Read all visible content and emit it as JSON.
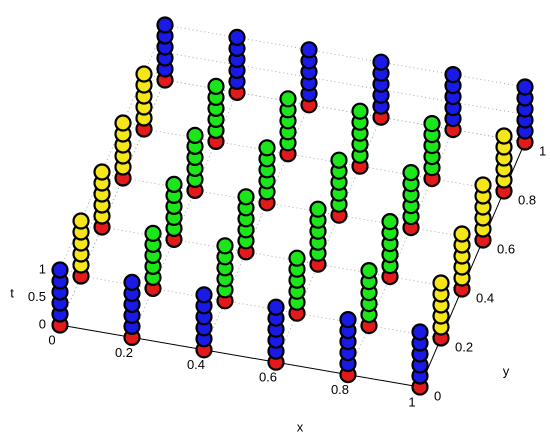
{
  "chart_data": {
    "type": "scatter3d",
    "x_label": "x",
    "y_label": "y",
    "z_label": "t",
    "xlim": [
      0,
      1
    ],
    "ylim": [
      0,
      1
    ],
    "zlim": [
      0,
      1
    ],
    "xticks": [
      0,
      0.2,
      0.4,
      0.6,
      0.8,
      1
    ],
    "yticks": [
      0,
      0.2,
      0.4,
      0.6,
      0.8,
      1
    ],
    "zticks": [
      0,
      0.5,
      1
    ],
    "grid": true,
    "series": [
      {
        "color": "#e41a1a",
        "x": [
          0,
          0.2,
          0.4,
          0.6,
          0.8,
          1,
          0,
          0.2,
          0.4,
          0.6,
          0.8,
          1,
          0,
          0.2,
          0.4,
          0.6,
          0.8,
          1,
          0,
          0.2,
          0.4,
          0.6,
          0.8,
          1,
          0,
          0.2,
          0.4,
          0.6,
          0.8,
          1,
          0,
          0.2,
          0.4,
          0.6,
          0.8,
          1
        ],
        "y": [
          0,
          0,
          0,
          0,
          0,
          0,
          0.2,
          0.2,
          0.2,
          0.2,
          0.2,
          0.2,
          0.4,
          0.4,
          0.4,
          0.4,
          0.4,
          0.4,
          0.6,
          0.6,
          0.6,
          0.6,
          0.6,
          0.6,
          0.8,
          0.8,
          0.8,
          0.8,
          0.8,
          0.8,
          1,
          1,
          1,
          1,
          1,
          1
        ],
        "z": [
          0,
          0,
          0,
          0,
          0,
          0,
          0,
          0,
          0,
          0,
          0,
          0,
          0,
          0,
          0,
          0,
          0,
          0,
          0,
          0,
          0,
          0,
          0,
          0,
          0,
          0,
          0,
          0,
          0,
          0,
          0,
          0,
          0,
          0,
          0,
          0
        ]
      },
      {
        "color": "#1a1ae6",
        "x": [
          0,
          0,
          0,
          0,
          0,
          0.2,
          0.2,
          0.2,
          0.2,
          0.2,
          0.4,
          0.4,
          0.4,
          0.4,
          0.4,
          0.6,
          0.6,
          0.6,
          0.6,
          0.6,
          0.8,
          0.8,
          0.8,
          0.8,
          0.8,
          1,
          1,
          1,
          1,
          1,
          0,
          0,
          0,
          0,
          0,
          0.2,
          0.2,
          0.2,
          0.2,
          0.2,
          0.4,
          0.4,
          0.4,
          0.4,
          0.4,
          0.6,
          0.6,
          0.6,
          0.6,
          0.6,
          0.8,
          0.8,
          0.8,
          0.8,
          0.8,
          1,
          1,
          1,
          1,
          1
        ],
        "y": [
          0,
          0,
          0,
          0,
          0,
          0,
          0,
          0,
          0,
          0,
          0,
          0,
          0,
          0,
          0,
          0,
          0,
          0,
          0,
          0,
          0,
          0,
          0,
          0,
          0,
          0,
          0,
          0,
          0,
          0,
          1,
          1,
          1,
          1,
          1,
          1,
          1,
          1,
          1,
          1,
          1,
          1,
          1,
          1,
          1,
          1,
          1,
          1,
          1,
          1,
          1,
          1,
          1,
          1,
          1,
          1,
          1,
          1,
          1,
          1
        ],
        "z": [
          0.2,
          0.4,
          0.6,
          0.8,
          1,
          0.2,
          0.4,
          0.6,
          0.8,
          1,
          0.2,
          0.4,
          0.6,
          0.8,
          1,
          0.2,
          0.4,
          0.6,
          0.8,
          1,
          0.2,
          0.4,
          0.6,
          0.8,
          1,
          0.2,
          0.4,
          0.6,
          0.8,
          1,
          0.2,
          0.4,
          0.6,
          0.8,
          1,
          0.2,
          0.4,
          0.6,
          0.8,
          1,
          0.2,
          0.4,
          0.6,
          0.8,
          1,
          0.2,
          0.4,
          0.6,
          0.8,
          1,
          0.2,
          0.4,
          0.6,
          0.8,
          1,
          0.2,
          0.4,
          0.6,
          0.8,
          1
        ]
      },
      {
        "color": "#f5e61a",
        "x": [
          0,
          0,
          0,
          0,
          0,
          0,
          0,
          0,
          0,
          0,
          0,
          0,
          0,
          0,
          0,
          0,
          0,
          0,
          0,
          0,
          1,
          1,
          1,
          1,
          1,
          1,
          1,
          1,
          1,
          1,
          1,
          1,
          1,
          1,
          1,
          1,
          1,
          1,
          1,
          1
        ],
        "y": [
          0.2,
          0.2,
          0.2,
          0.2,
          0.2,
          0.4,
          0.4,
          0.4,
          0.4,
          0.4,
          0.6,
          0.6,
          0.6,
          0.6,
          0.6,
          0.8,
          0.8,
          0.8,
          0.8,
          0.8,
          0.2,
          0.2,
          0.2,
          0.2,
          0.2,
          0.4,
          0.4,
          0.4,
          0.4,
          0.4,
          0.6,
          0.6,
          0.6,
          0.6,
          0.6,
          0.8,
          0.8,
          0.8,
          0.8,
          0.8
        ],
        "z": [
          0.2,
          0.4,
          0.6,
          0.8,
          1,
          0.2,
          0.4,
          0.6,
          0.8,
          1,
          0.2,
          0.4,
          0.6,
          0.8,
          1,
          0.2,
          0.4,
          0.6,
          0.8,
          1,
          0.2,
          0.4,
          0.6,
          0.8,
          1,
          0.2,
          0.4,
          0.6,
          0.8,
          1,
          0.2,
          0.4,
          0.6,
          0.8,
          1,
          0.2,
          0.4,
          0.6,
          0.8,
          1
        ]
      },
      {
        "color": "#1ae61a",
        "x": [
          0.2,
          0.2,
          0.2,
          0.2,
          0.2,
          0.4,
          0.4,
          0.4,
          0.4,
          0.4,
          0.6,
          0.6,
          0.6,
          0.6,
          0.6,
          0.8,
          0.8,
          0.8,
          0.8,
          0.8,
          0.2,
          0.2,
          0.2,
          0.2,
          0.2,
          0.4,
          0.4,
          0.4,
          0.4,
          0.4,
          0.6,
          0.6,
          0.6,
          0.6,
          0.6,
          0.8,
          0.8,
          0.8,
          0.8,
          0.8,
          0.2,
          0.2,
          0.2,
          0.2,
          0.2,
          0.4,
          0.4,
          0.4,
          0.4,
          0.4,
          0.6,
          0.6,
          0.6,
          0.6,
          0.6,
          0.8,
          0.8,
          0.8,
          0.8,
          0.8,
          0.2,
          0.2,
          0.2,
          0.2,
          0.2,
          0.4,
          0.4,
          0.4,
          0.4,
          0.4,
          0.6,
          0.6,
          0.6,
          0.6,
          0.6,
          0.8,
          0.8,
          0.8,
          0.8,
          0.8
        ],
        "y": [
          0.2,
          0.2,
          0.2,
          0.2,
          0.2,
          0.2,
          0.2,
          0.2,
          0.2,
          0.2,
          0.2,
          0.2,
          0.2,
          0.2,
          0.2,
          0.2,
          0.2,
          0.2,
          0.2,
          0.2,
          0.4,
          0.4,
          0.4,
          0.4,
          0.4,
          0.4,
          0.4,
          0.4,
          0.4,
          0.4,
          0.4,
          0.4,
          0.4,
          0.4,
          0.4,
          0.4,
          0.4,
          0.4,
          0.4,
          0.4,
          0.6,
          0.6,
          0.6,
          0.6,
          0.6,
          0.6,
          0.6,
          0.6,
          0.6,
          0.6,
          0.6,
          0.6,
          0.6,
          0.6,
          0.6,
          0.6,
          0.6,
          0.6,
          0.6,
          0.6,
          0.8,
          0.8,
          0.8,
          0.8,
          0.8,
          0.8,
          0.8,
          0.8,
          0.8,
          0.8,
          0.8,
          0.8,
          0.8,
          0.8,
          0.8,
          0.8,
          0.8,
          0.8,
          0.8,
          0.8
        ],
        "z": [
          0.2,
          0.4,
          0.6,
          0.8,
          1,
          0.2,
          0.4,
          0.6,
          0.8,
          1,
          0.2,
          0.4,
          0.6,
          0.8,
          1,
          0.2,
          0.4,
          0.6,
          0.8,
          1,
          0.2,
          0.4,
          0.6,
          0.8,
          1,
          0.2,
          0.4,
          0.6,
          0.8,
          1,
          0.2,
          0.4,
          0.6,
          0.8,
          1,
          0.2,
          0.4,
          0.6,
          0.8,
          1,
          0.2,
          0.4,
          0.6,
          0.8,
          1,
          0.2,
          0.4,
          0.6,
          0.8,
          1,
          0.2,
          0.4,
          0.6,
          0.8,
          1,
          0.2,
          0.4,
          0.6,
          0.8,
          1,
          0.2,
          0.4,
          0.6,
          0.8,
          1,
          0.2,
          0.4,
          0.6,
          0.8,
          1,
          0.2,
          0.4,
          0.6,
          0.8,
          1,
          0.2,
          0.4,
          0.6,
          0.8,
          1
        ]
      }
    ]
  }
}
